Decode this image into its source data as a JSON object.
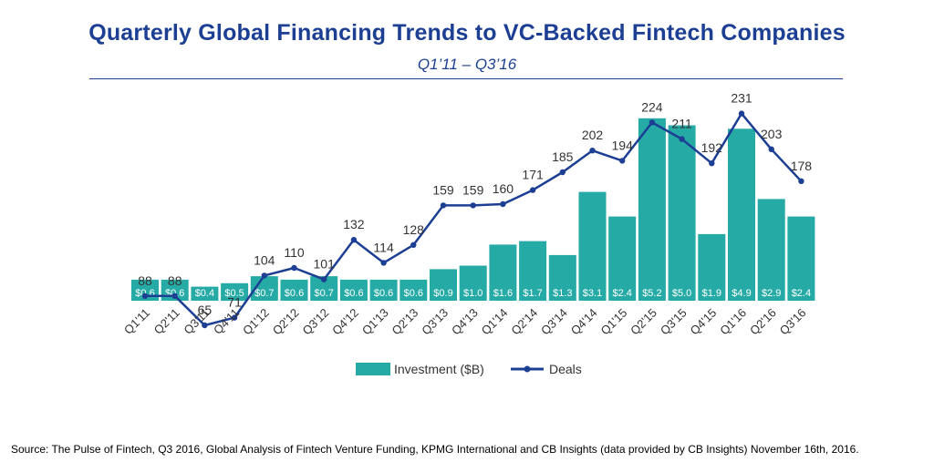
{
  "title": "Quarterly  Global Financing Trends to VC-Backed  Fintech Companies",
  "subtitle": "Q1’11 – Q3’16",
  "source": "Source: The Pulse of Fintech, Q3 2016, Global Analysis of Fintech Venture Funding, KPMG International and CB Insights (data provided by CB Insights) November 16th, 2016.",
  "colors": {
    "bar": "#26aaa6",
    "line": "#1c3f94",
    "title": "#1c3f94"
  },
  "chart_data": {
    "type": "bar",
    "title": "Quarterly  Global Financing Trends to VC-Backed  Fintech Companies",
    "subtitle": "Q1’11 – Q3’16",
    "categories": [
      "Q1'11",
      "Q2'11",
      "Q3'11",
      "Q4'11",
      "Q1'12",
      "Q2'12",
      "Q3'12",
      "Q4'12",
      "Q1'13",
      "Q2'13",
      "Q3'13",
      "Q4'13",
      "Q1'14",
      "Q2'14",
      "Q3'14",
      "Q4'14",
      "Q1'15",
      "Q2'15",
      "Q3'15",
      "Q4'15",
      "Q1'16",
      "Q2'16",
      "Q3'16"
    ],
    "series": [
      {
        "name": "Investment ($B)",
        "type": "bar",
        "values": [
          0.6,
          0.6,
          0.4,
          0.5,
          0.7,
          0.6,
          0.7,
          0.6,
          0.6,
          0.6,
          0.9,
          1.0,
          1.6,
          1.7,
          1.3,
          3.1,
          2.4,
          5.2,
          5.0,
          1.9,
          4.9,
          2.9,
          2.4
        ],
        "labels": [
          "$0.6",
          "$0.6",
          "$0.4",
          "$0.5",
          "$0.7",
          "$0.6",
          "$0.7",
          "$0.6",
          "$0.6",
          "$0.6",
          "$0.9",
          "$1.0",
          "$1.6",
          "$1.7",
          "$1.3",
          "$3.1",
          "$2.4",
          "$5.2",
          "$5.0",
          "$1.9",
          "$4.9",
          "$2.9",
          "$2.4"
        ]
      },
      {
        "name": "Deals",
        "type": "line",
        "values": [
          88,
          88,
          65,
          71,
          104,
          110,
          101,
          132,
          114,
          128,
          159,
          159,
          160,
          171,
          185,
          202,
          194,
          224,
          211,
          192,
          231,
          203,
          178
        ]
      }
    ],
    "legend": {
      "position": "bottom",
      "items": [
        "Investment ($B)",
        "Deals"
      ]
    },
    "grid": false
  }
}
